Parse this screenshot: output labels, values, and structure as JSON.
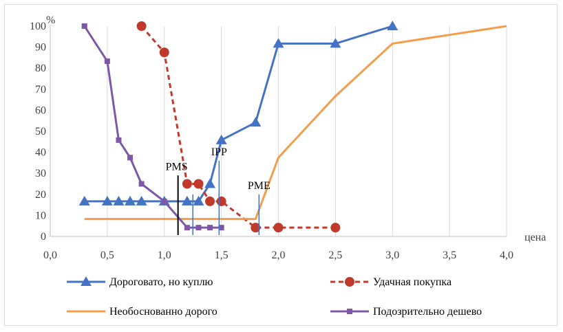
{
  "chart_data": {
    "type": "line",
    "xlabel": "цена",
    "ylabel": "%",
    "xlim": [
      0,
      4
    ],
    "ylim": [
      0,
      100
    ],
    "x_ticks": [
      "0,0",
      "0,5",
      "1,0",
      "1,5",
      "2,0",
      "2,5",
      "3,0",
      "3,5",
      "4,0"
    ],
    "y_ticks": [
      "0",
      "10",
      "20",
      "30",
      "40",
      "50",
      "60",
      "70",
      "80",
      "90",
      "100"
    ],
    "grid": "vertical",
    "legend_position": "bottom",
    "series": [
      {
        "name": "Дороговато, но куплю",
        "color": "#4472c4",
        "marker": "triangle",
        "dash": "solid",
        "points": [
          [
            0.3,
            16.7
          ],
          [
            0.5,
            16.7
          ],
          [
            0.6,
            16.7
          ],
          [
            0.7,
            16.7
          ],
          [
            0.8,
            16.7
          ],
          [
            1.0,
            16.7
          ],
          [
            1.2,
            16.7
          ],
          [
            1.3,
            16.7
          ],
          [
            1.4,
            25
          ],
          [
            1.5,
            45.8
          ],
          [
            1.8,
            54.2
          ],
          [
            2.0,
            91.7
          ],
          [
            2.5,
            91.7
          ],
          [
            3.0,
            100
          ]
        ]
      },
      {
        "name": "Удачная покупка",
        "color": "#c0392b",
        "marker": "circle",
        "dash": "dashed",
        "points": [
          [
            0.8,
            100
          ],
          [
            1.0,
            87.5
          ],
          [
            1.2,
            25
          ],
          [
            1.3,
            25
          ],
          [
            1.4,
            16.7
          ],
          [
            1.5,
            16.7
          ],
          [
            1.8,
            4.2
          ],
          [
            2.0,
            4.2
          ],
          [
            2.5,
            4.2
          ]
        ]
      },
      {
        "name": "Необоснованно дорого",
        "color": "#f39c4a",
        "marker": "none",
        "dash": "solid",
        "points": [
          [
            0.3,
            8.3
          ],
          [
            1.8,
            8.3
          ],
          [
            2.0,
            37.5
          ],
          [
            2.5,
            66.7
          ],
          [
            3.0,
            91.7
          ],
          [
            4.0,
            100
          ]
        ]
      },
      {
        "name": "Подозрительно дешево",
        "color": "#7e57a8",
        "marker": "square",
        "dash": "solid",
        "points": [
          [
            0.3,
            100
          ],
          [
            0.5,
            83.3
          ],
          [
            0.6,
            45.8
          ],
          [
            0.7,
            37.5
          ],
          [
            0.8,
            25
          ],
          [
            1.0,
            16.7
          ],
          [
            1.2,
            4.2
          ],
          [
            1.3,
            4.2
          ],
          [
            1.4,
            4.2
          ],
          [
            1.5,
            4.2
          ]
        ]
      }
    ],
    "annotations": [
      {
        "label": "PMS",
        "x": 1.12,
        "y_top": 29,
        "color": "#000000"
      },
      {
        "label": "IPP",
        "x": 1.48,
        "y_top": 36,
        "color": "#4472c4"
      },
      {
        "label": "PME",
        "x": 1.83,
        "y_top": 20,
        "color": "#4472c4"
      },
      {
        "label": "",
        "x": 1.25,
        "y_top": 20,
        "color": "#4472c4"
      }
    ]
  }
}
